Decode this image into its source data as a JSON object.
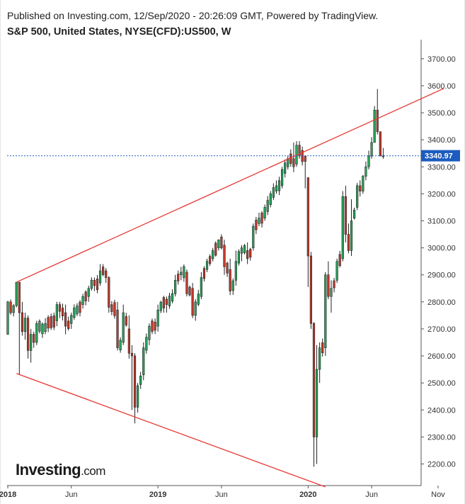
{
  "header": {
    "published": "Published on Investing.com, 12/Sep/2020 - 20:26:09 GMT, Powered by TradingView.",
    "symbol": "S&P 500, United States, NYSE(CFD):US500, W"
  },
  "logo": {
    "brand": "Investing",
    "suffix": ".com"
  },
  "chart_data": {
    "type": "candlestick",
    "title": "S&P 500, United States, NYSE(CFD):US500, W",
    "timeframe": "W",
    "y_axis": {
      "ticks": [
        2200,
        2300,
        2400,
        2500,
        2600,
        2700,
        2800,
        2900,
        3000,
        3100,
        3200,
        3300,
        3400,
        3500,
        3600,
        3700
      ],
      "tick_labels": [
        "2200.00",
        "2300.00",
        "2400.00",
        "2500.00",
        "2600.00",
        "2700.00",
        "2800.00",
        "2900.00",
        "3000.00",
        "3100.00",
        "3200.00",
        "3300.00",
        "3400.00",
        "3500.00",
        "3600.00",
        "3700.00"
      ],
      "ylim": [
        2120,
        3760
      ],
      "position": "right"
    },
    "x_axis": {
      "tick_labels": [
        "2018",
        "Jun",
        "2019",
        "Jun",
        "2020",
        "Jun",
        "Nov"
      ],
      "tick_weeks": [
        0,
        22,
        52,
        74,
        104,
        126,
        149
      ]
    },
    "last_price": {
      "value": 3340.97,
      "label": "3340.97",
      "color": "#1c5cbf"
    },
    "up_color": "#26a65b",
    "down_color": "#c0392b",
    "trendlines": [
      {
        "name": "upper",
        "color": "#e53935",
        "points": [
          [
            3,
            2873
          ],
          [
            151,
            3590
          ]
        ]
      },
      {
        "name": "lower",
        "color": "#e53935",
        "points": [
          [
            3,
            2535
          ],
          [
            110,
            2115
          ]
        ]
      }
    ],
    "anchors": [
      [
        0,
        2680,
        2800,
        2678,
        2804
      ],
      [
        1,
        2800,
        2760,
        2752,
        2809
      ],
      [
        2,
        2760,
        2786,
        2746,
        2792
      ],
      [
        3,
        2786,
        2873,
        2780,
        2873
      ],
      [
        4,
        2873,
        2760,
        2532,
        2873
      ],
      [
        5,
        2760,
        2690,
        2675,
        2800
      ],
      [
        6,
        2690,
        2740,
        2660,
        2760
      ],
      [
        7,
        2740,
        2620,
        2590,
        2750
      ],
      [
        8,
        2620,
        2680,
        2575,
        2700
      ],
      [
        9,
        2680,
        2650,
        2630,
        2690
      ],
      [
        10,
        2650,
        2720,
        2640,
        2730
      ],
      [
        13,
        2690,
        2720,
        2680,
        2740
      ],
      [
        17,
        2730,
        2790,
        2710,
        2800
      ],
      [
        18,
        2790,
        2765,
        2740,
        2800
      ],
      [
        20,
        2760,
        2710,
        2680,
        2790
      ],
      [
        22,
        2720,
        2750,
        2700,
        2760
      ],
      [
        26,
        2790,
        2820,
        2775,
        2830
      ],
      [
        28,
        2820,
        2850,
        2800,
        2860
      ],
      [
        30,
        2880,
        2860,
        2840,
        2890
      ],
      [
        32,
        2870,
        2915,
        2860,
        2940
      ],
      [
        34,
        2915,
        2890,
        2870,
        2925
      ],
      [
        35,
        2890,
        2780,
        2760,
        2895
      ],
      [
        38,
        2770,
        2630,
        2620,
        2800
      ],
      [
        40,
        2650,
        2760,
        2640,
        2790
      ],
      [
        42,
        2700,
        2610,
        2590,
        2750
      ],
      [
        43,
        2610,
        2600,
        2400,
        2640
      ],
      [
        44,
        2600,
        2410,
        2350,
        2610
      ],
      [
        45,
        2410,
        2490,
        2390,
        2500
      ],
      [
        47,
        2530,
        2630,
        2510,
        2650
      ],
      [
        49,
        2660,
        2710,
        2640,
        2720
      ],
      [
        52,
        2710,
        2770,
        2690,
        2790
      ],
      [
        55,
        2810,
        2790,
        2760,
        2820
      ],
      [
        58,
        2830,
        2880,
        2820,
        2900
      ],
      [
        60,
        2900,
        2910,
        2880,
        2930
      ],
      [
        62,
        2910,
        2830,
        2820,
        2920
      ],
      [
        64,
        2850,
        2750,
        2740,
        2870
      ],
      [
        65,
        2750,
        2800,
        2730,
        2810
      ],
      [
        67,
        2820,
        2890,
        2810,
        2910
      ],
      [
        69,
        2920,
        2950,
        2910,
        2960
      ],
      [
        71,
        2960,
        2990,
        2950,
        3000
      ],
      [
        73,
        3000,
        3030,
        2990,
        3030
      ],
      [
        75,
        3010,
        2930,
        2900,
        3030
      ],
      [
        77,
        2920,
        2840,
        2825,
        2960
      ],
      [
        79,
        2880,
        2950,
        2860,
        2990
      ],
      [
        81,
        2980,
        3000,
        2950,
        3010
      ],
      [
        83,
        2990,
        2960,
        2940,
        3020
      ],
      [
        85,
        3000,
        3080,
        2990,
        3090
      ],
      [
        87,
        3090,
        3110,
        3080,
        3130
      ],
      [
        89,
        3110,
        3150,
        3100,
        3160
      ],
      [
        91,
        3160,
        3200,
        3150,
        3210
      ],
      [
        93,
        3210,
        3230,
        3200,
        3250
      ],
      [
        95,
        3230,
        3290,
        3220,
        3300
      ],
      [
        97,
        3300,
        3330,
        3290,
        3340
      ],
      [
        99,
        3330,
        3300,
        3280,
        3390
      ],
      [
        100,
        3310,
        3380,
        3300,
        3395
      ],
      [
        101,
        3380,
        3340,
        3330,
        3395
      ],
      [
        103,
        3340,
        3320,
        3220,
        3340
      ],
      [
        104,
        3260,
        2970,
        2855,
        3260
      ],
      [
        105,
        2970,
        2720,
        2700,
        2985
      ],
      [
        106,
        2720,
        2300,
        2190,
        2725
      ],
      [
        107,
        2300,
        2550,
        2200,
        2640
      ],
      [
        108,
        2550,
        2630,
        2500,
        2650
      ],
      [
        110,
        2630,
        2900,
        2600,
        2910
      ],
      [
        111,
        2900,
        2820,
        2810,
        2950
      ],
      [
        112,
        2820,
        2850,
        2760,
        2880
      ],
      [
        114,
        2880,
        2950,
        2870,
        2960
      ],
      [
        116,
        2960,
        3190,
        2950,
        3210
      ],
      [
        117,
        3190,
        3050,
        3020,
        3230
      ],
      [
        118,
        3050,
        2990,
        2980,
        3090
      ],
      [
        119,
        2990,
        3100,
        2970,
        3180
      ],
      [
        121,
        3150,
        3230,
        3140,
        3240
      ],
      [
        122,
        3230,
        3210,
        3190,
        3250
      ],
      [
        123,
        3210,
        3265,
        3200,
        3270
      ],
      [
        124,
        3265,
        3300,
        3250,
        3320
      ],
      [
        125,
        3300,
        3340,
        3290,
        3360
      ],
      [
        126,
        3340,
        3390,
        3330,
        3410
      ],
      [
        127,
        3390,
        3510,
        3390,
        3525
      ],
      [
        128,
        3510,
        3430,
        3420,
        3588
      ],
      [
        129,
        3430,
        3340,
        3340,
        3430
      ],
      [
        130,
        3340,
        3340,
        3330,
        3370
      ]
    ]
  }
}
